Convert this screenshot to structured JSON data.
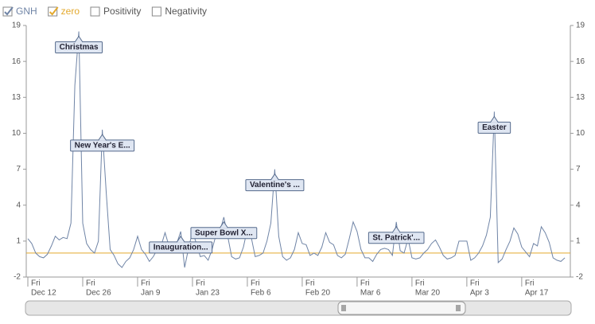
{
  "chart_data": {
    "type": "line",
    "xlim": [
      "Dec 12",
      "Apr 29"
    ],
    "ylim": [
      -2,
      19
    ],
    "yticks": [
      -2,
      1,
      4,
      7,
      10,
      13,
      16,
      19
    ],
    "y2lim": [
      -2,
      19
    ],
    "y2ticks": [
      -2,
      1,
      4,
      7,
      10,
      13,
      16,
      19
    ],
    "xticks": [
      {
        "value": "Dec 12",
        "weekday": "Fri"
      },
      {
        "value": "Dec 26",
        "weekday": "Fri"
      },
      {
        "value": "Jan 9",
        "weekday": "Fri"
      },
      {
        "value": "Jan 23",
        "weekday": "Fri"
      },
      {
        "value": "Feb 6",
        "weekday": "Fri"
      },
      {
        "value": "Feb 20",
        "weekday": "Fri"
      },
      {
        "value": "Mar 6",
        "weekday": "Fri"
      },
      {
        "value": "Mar 20",
        "weekday": "Fri"
      },
      {
        "value": "Apr 3",
        "weekday": "Fri"
      },
      {
        "value": "Apr 17",
        "weekday": "Fri"
      }
    ],
    "x": [
      "Dec 12",
      "Dec 13",
      "Dec 14",
      "Dec 15",
      "Dec 16",
      "Dec 17",
      "Dec 18",
      "Dec 19",
      "Dec 20",
      "Dec 21",
      "Dec 22",
      "Dec 23",
      "Dec 24",
      "Dec 25",
      "Dec 26",
      "Dec 27",
      "Dec 28",
      "Dec 29",
      "Dec 30",
      "Dec 31",
      "Jan 1",
      "Jan 2",
      "Jan 3",
      "Jan 4",
      "Jan 5",
      "Jan 6",
      "Jan 7",
      "Jan 8",
      "Jan 9",
      "Jan 10",
      "Jan 11",
      "Jan 12",
      "Jan 13",
      "Jan 14",
      "Jan 15",
      "Jan 16",
      "Jan 17",
      "Jan 18",
      "Jan 19",
      "Jan 20",
      "Jan 21",
      "Jan 22",
      "Jan 23",
      "Jan 24",
      "Jan 25",
      "Jan 26",
      "Jan 27",
      "Jan 28",
      "Jan 29",
      "Jan 30",
      "Jan 31",
      "Feb 1",
      "Feb 2",
      "Feb 3",
      "Feb 4",
      "Feb 5",
      "Feb 6",
      "Feb 7",
      "Feb 8",
      "Feb 9",
      "Feb 10",
      "Feb 11",
      "Feb 12",
      "Feb 13",
      "Feb 14",
      "Feb 15",
      "Feb 16",
      "Feb 17",
      "Feb 18",
      "Feb 19",
      "Feb 20",
      "Feb 21",
      "Feb 22",
      "Feb 23",
      "Feb 24",
      "Feb 25",
      "Feb 26",
      "Feb 27",
      "Feb 28",
      "Mar 1",
      "Mar 2",
      "Mar 3",
      "Mar 4",
      "Mar 5",
      "Mar 6",
      "Mar 7",
      "Mar 8",
      "Mar 9",
      "Mar 10",
      "Mar 11",
      "Mar 12",
      "Mar 13",
      "Mar 14",
      "Mar 15",
      "Mar 16",
      "Mar 17",
      "Mar 18",
      "Mar 19",
      "Mar 20",
      "Mar 21",
      "Mar 22",
      "Mar 23",
      "Mar 24",
      "Mar 25",
      "Mar 26",
      "Mar 27",
      "Mar 28",
      "Mar 29",
      "Mar 30",
      "Mar 31",
      "Apr 1",
      "Apr 2",
      "Apr 3",
      "Apr 4",
      "Apr 5",
      "Apr 6",
      "Apr 7",
      "Apr 8",
      "Apr 9",
      "Apr 10",
      "Apr 11",
      "Apr 12",
      "Apr 13",
      "Apr 14",
      "Apr 15",
      "Apr 16",
      "Apr 17",
      "Apr 18",
      "Apr 19",
      "Apr 20",
      "Apr 21",
      "Apr 22",
      "Apr 23",
      "Apr 24",
      "Apr 25",
      "Apr 26",
      "Apr 27",
      "Apr 28"
    ],
    "series": [
      {
        "name": "GNH",
        "color": "#6f84a6",
        "values": [
          1.2,
          0.8,
          0.0,
          -0.3,
          -0.4,
          -0.1,
          0.6,
          1.4,
          1.1,
          1.3,
          1.2,
          2.5,
          14,
          18.5,
          2.5,
          0.8,
          0.3,
          0.0,
          1.0,
          10.3,
          5,
          0.3,
          -0.2,
          -0.9,
          -1.2,
          -0.7,
          -0.4,
          0.3,
          1.4,
          0.3,
          -0.1,
          -0.7,
          -0.3,
          0.3,
          0.6,
          1.7,
          0.6,
          0.3,
          0.8,
          1.8,
          -1.2,
          0.4,
          1.8,
          0.8,
          -0.3,
          -0.2,
          -0.6,
          0.3,
          1.5,
          1.8,
          3.0,
          1.4,
          -0.3,
          -0.5,
          -0.4,
          0.5,
          2.0,
          1.3,
          -0.3,
          -0.2,
          0.0,
          1.0,
          2.5,
          7.0,
          1.4,
          -0.3,
          -0.6,
          -0.4,
          0.3,
          1.7,
          0.8,
          0.7,
          -0.2,
          0.0,
          -0.2,
          0.5,
          1.7,
          0.9,
          0.7,
          -0.2,
          -0.4,
          -0.1,
          1.2,
          2.6,
          1.8,
          0.3,
          -0.4,
          -0.4,
          -0.7,
          -0.1,
          0.3,
          0.4,
          0.3,
          -0.2,
          2.6,
          0.2,
          0.0,
          1.2,
          -0.4,
          -0.5,
          -0.4,
          0.0,
          0.3,
          0.8,
          1.1,
          0.5,
          -0.2,
          -0.5,
          -0.4,
          -0.2,
          1.0,
          1.0,
          1.0,
          -0.6,
          -0.4,
          0.0,
          0.6,
          1.5,
          3.0,
          11.8,
          -0.8,
          -0.5,
          0.3,
          1.0,
          2.1,
          1.6,
          0.5,
          0.1,
          -0.3,
          0.8,
          0.6,
          2.2,
          1.7,
          0.9,
          -0.4,
          -0.6,
          -0.7,
          -0.4
        ]
      }
    ],
    "reference_line": {
      "name": "zero",
      "value": 0,
      "color": "#e3a92e"
    },
    "hidden_series": [
      "Positivity",
      "Negativity"
    ],
    "annotations": [
      {
        "x": "Dec 25",
        "text": "Christmas"
      },
      {
        "x": "Dec 31",
        "text": "New Year's E..."
      },
      {
        "x": "Jan 20",
        "text": "Inauguration..."
      },
      {
        "x": "Jan 31",
        "text": "Super Bowl X..."
      },
      {
        "x": "Feb 13",
        "text": "Valentine's ..."
      },
      {
        "x": "Mar 16",
        "text": "St. Patrick'..."
      },
      {
        "x": "Apr 10",
        "text": "Easter"
      }
    ]
  }
}
